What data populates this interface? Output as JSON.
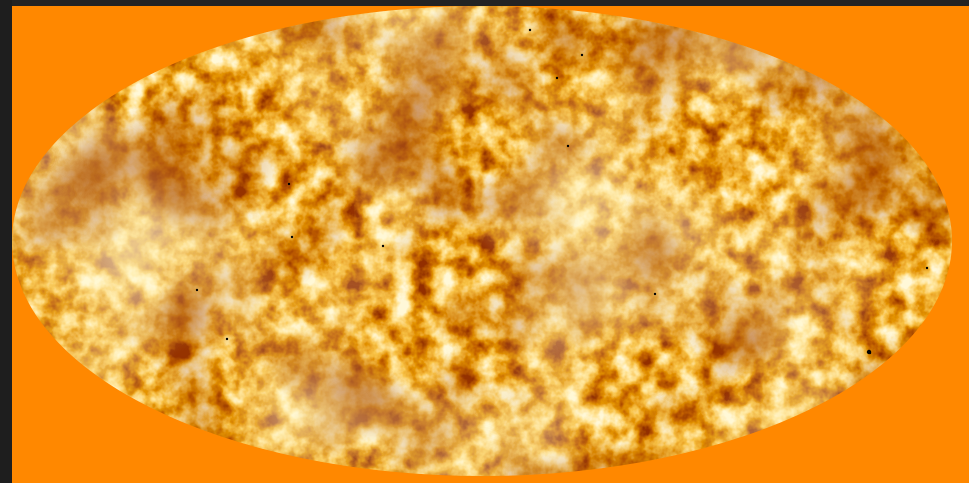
{
  "viewer": {
    "background_color": "#ff8800",
    "map": {
      "projection": "mollweide",
      "colormap": [
        "#4a0800",
        "#8a1e00",
        "#c44a00",
        "#f08a10",
        "#ffc850",
        "#fff0b0"
      ],
      "point_source_color": "#000000"
    }
  }
}
